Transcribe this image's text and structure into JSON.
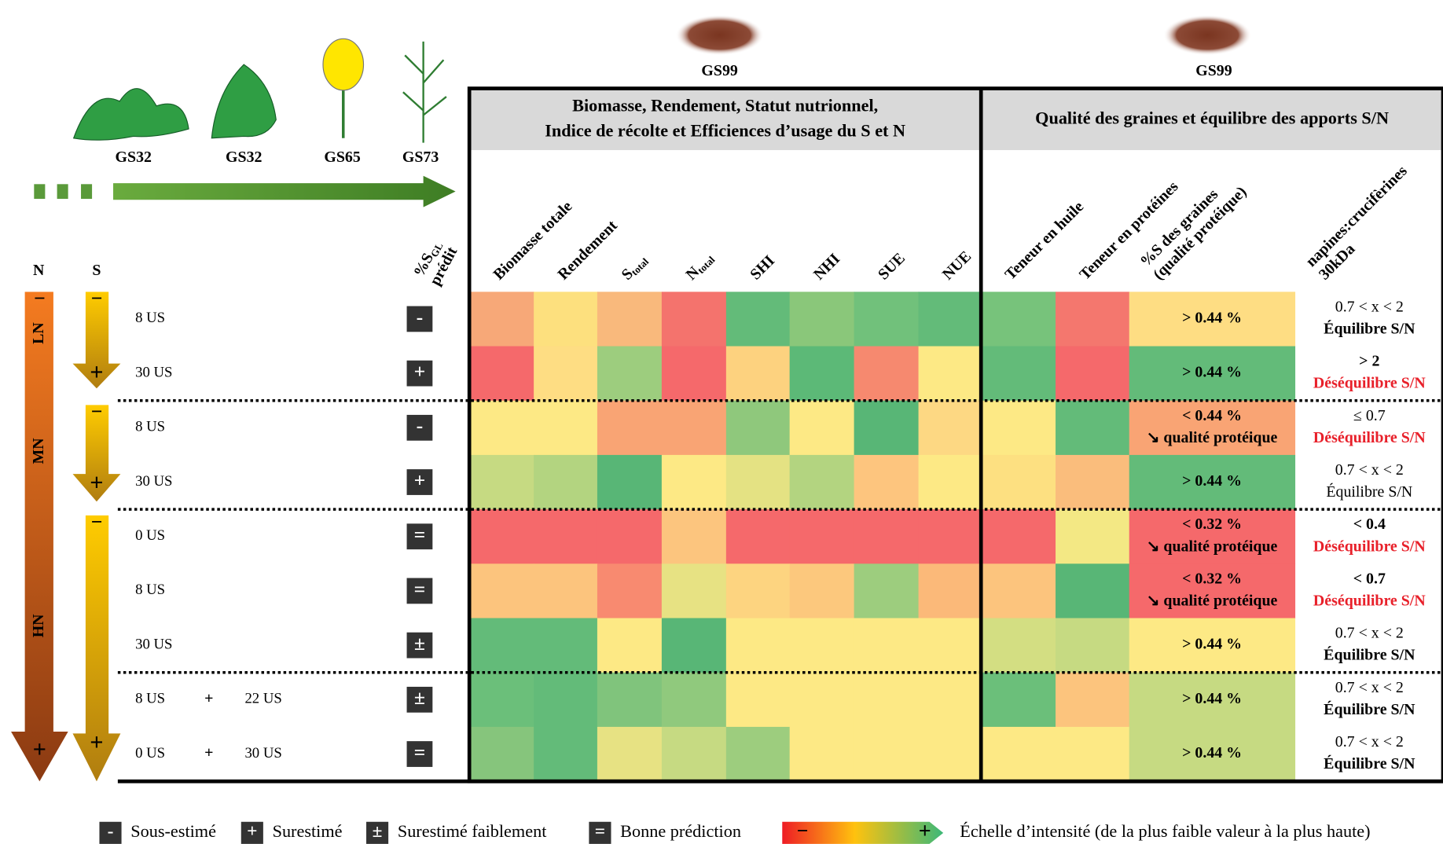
{
  "stages": [
    "GS32",
    "GS32",
    "GS65",
    "GS73"
  ],
  "predicted_header": {
    "main": "%S",
    "sub": "GL",
    "rest": "prédit"
  },
  "gs99": [
    "GS99",
    "GS99"
  ],
  "groups": [
    {
      "lines": [
        "Biomasse, Rendement, Statut nutrionnel,",
        "Indice de récolte et Efficiences d’usage du S et N"
      ]
    },
    {
      "lines": [
        "Qualité des graines et équilibre des apports S/N"
      ]
    }
  ],
  "columns": [
    {
      "lines": [
        "Biomasse totale"
      ]
    },
    {
      "lines": [
        "Rendement"
      ]
    },
    {
      "text": "S",
      "sub": "total"
    },
    {
      "text": "N",
      "sub": "total"
    },
    {
      "lines": [
        "SHI"
      ]
    },
    {
      "lines": [
        "NHI"
      ]
    },
    {
      "lines": [
        "SUE"
      ]
    },
    {
      "lines": [
        "NUE"
      ]
    },
    {
      "lines": [
        "Teneur en huile"
      ]
    },
    {
      "lines": [
        "Teneur en protéines"
      ]
    },
    {
      "lines": [
        "%S des graines",
        "(qualité protéique)"
      ]
    },
    {
      "lines": [
        "napines:crucifèrines",
        "30kDa"
      ]
    }
  ],
  "n_axis": {
    "label": "N",
    "minus": "−",
    "plus": "+",
    "levels": [
      "LN",
      "MN",
      "HN"
    ]
  },
  "s_axis": {
    "label": "S",
    "minus": "−",
    "plus": "+"
  },
  "rows": [
    {
      "dose": "8 US",
      "prediction": "-",
      "cells": [
        "#f7a878",
        "#fde07e",
        "#f9b97c",
        "#f4736d",
        "#63bb79",
        "#8ac77a",
        "#71c17b",
        "#63bb79",
        "#77c37b",
        "#f4776e",
        "#fedd83"
      ],
      "quality": [
        "> 0.44 %"
      ],
      "balance": [
        {
          "text": "0.7 < x < 2",
          "style": "normal"
        },
        {
          "text": "Équilibre S/N",
          "style": "bold"
        }
      ]
    },
    {
      "dose": "30 US",
      "prediction": "+",
      "cells": [
        "#f5696b",
        "#fedd83",
        "#9dcd7e",
        "#f5696b",
        "#fdd27f",
        "#5cb977",
        "#f6896f",
        "#fde985",
        "#63bb79",
        "#f5696b",
        "#63bb79"
      ],
      "quality": [
        "> 0.44 %"
      ],
      "balance": [
        {
          "text": "> 2",
          "style": "bold"
        },
        {
          "text": "Déséquilibre S/N",
          "style": "red"
        }
      ]
    },
    {
      "dose": "8 US",
      "prediction": "-",
      "cells": [
        "#fde985",
        "#fde985",
        "#f9a474",
        "#f9a474",
        "#8fc87c",
        "#fde985",
        "#58b676",
        "#fdd883",
        "#fde985",
        "#63bb79",
        "#f9a474"
      ],
      "quality": [
        "< 0.44 %",
        "↘ qualité protéique"
      ],
      "balance": [
        {
          "text": "≤ 0.7",
          "style": "normal"
        },
        {
          "text": "Déséquilibre S/N",
          "style": "red"
        }
      ]
    },
    {
      "dose": "30 US",
      "prediction": "+",
      "cells": [
        "#c6da82",
        "#b3d480",
        "#58b676",
        "#fde985",
        "#e4e283",
        "#b3d480",
        "#fdc57e",
        "#fde985",
        "#fde081",
        "#fabd7c",
        "#63bb79"
      ],
      "quality": [
        "> 0.44 %"
      ],
      "balance": [
        {
          "text": "0.7 < x < 2",
          "style": "normal"
        },
        {
          "text": "Équilibre S/N",
          "style": "normal"
        }
      ]
    },
    {
      "dose": "0 US",
      "prediction": "=",
      "cells": [
        "#f5696b",
        "#f5696b",
        "#f5696b",
        "#fcc57e",
        "#f5696b",
        "#f5696b",
        "#f5696b",
        "#f5696b",
        "#f5696b",
        "#f3e884",
        "#f5696b"
      ],
      "quality": [
        "< 0.32 %",
        "↘ qualité protéique"
      ],
      "balance": [
        {
          "text": "< 0.4",
          "style": "bold"
        },
        {
          "text": "Déséquilibre S/N",
          "style": "red"
        }
      ]
    },
    {
      "dose": "8 US",
      "prediction": "=",
      "cells": [
        "#fcc47d",
        "#fcc47d",
        "#f88a70",
        "#e7e283",
        "#fdd480",
        "#fcc87d",
        "#9dcd7e",
        "#fbb979",
        "#fcc47d",
        "#58b676",
        "#f5696b"
      ],
      "quality": [
        "< 0.32 %",
        "↘ qualité protéique"
      ],
      "balance": [
        {
          "text": "< 0.7",
          "style": "bold"
        },
        {
          "text": "Déséquilibre S/N",
          "style": "red"
        }
      ]
    },
    {
      "dose": "30 US",
      "prediction": "±",
      "cells": [
        "#63bb79",
        "#63bb79",
        "#fde985",
        "#58b676",
        "#fde985",
        "#fde985",
        "#fde985",
        "#fde985",
        "#d3de82",
        "#c6da82",
        "#fde985"
      ],
      "quality": [
        "> 0.44 %"
      ],
      "balance": [
        {
          "text": "0.7 < x < 2",
          "style": "normal"
        },
        {
          "text": "Équilibre S/N",
          "style": "bold"
        }
      ]
    },
    {
      "dose": "8 US",
      "plus": "+",
      "dose2": "22 US",
      "prediction": "±",
      "cells": [
        "#6bbf7a",
        "#63bb79",
        "#80c47c",
        "#90c97d",
        "#fde985",
        "#fde985",
        "#fde985",
        "#fde985",
        "#6bbf7a",
        "#fcc47d",
        "#c6da82"
      ],
      "quality": [
        "> 0.44 %"
      ],
      "balance": [
        {
          "text": "0.7 < x < 2",
          "style": "normal"
        },
        {
          "text": "Équilibre S/N",
          "style": "bold"
        }
      ]
    },
    {
      "dose": "0 US",
      "plus": "+",
      "dose2": "30 US",
      "prediction": "=",
      "cells": [
        "#86c57c",
        "#63bb79",
        "#e7e283",
        "#c6da82",
        "#9dcd7e",
        "#fde985",
        "#fde985",
        "#fde985",
        "#fde985",
        "#fde985",
        "#c6da82"
      ],
      "quality": [
        "> 0.44 %"
      ],
      "balance": [
        {
          "text": "0.7 < x < 2",
          "style": "normal"
        },
        {
          "text": "Équilibre S/N",
          "style": "bold"
        }
      ]
    }
  ],
  "legend": {
    "items": [
      {
        "symbol": "-",
        "label": "Sous-estimé"
      },
      {
        "symbol": "+",
        "label": "Surestimé"
      },
      {
        "symbol": "±",
        "label": "Surestimé faiblement"
      },
      {
        "symbol": "=",
        "label": "Bonne prédiction"
      }
    ],
    "scale": {
      "minus": "−",
      "plus": "+",
      "label": "Échelle d’intensité (de la plus faible valeur à la plus haute)"
    }
  }
}
